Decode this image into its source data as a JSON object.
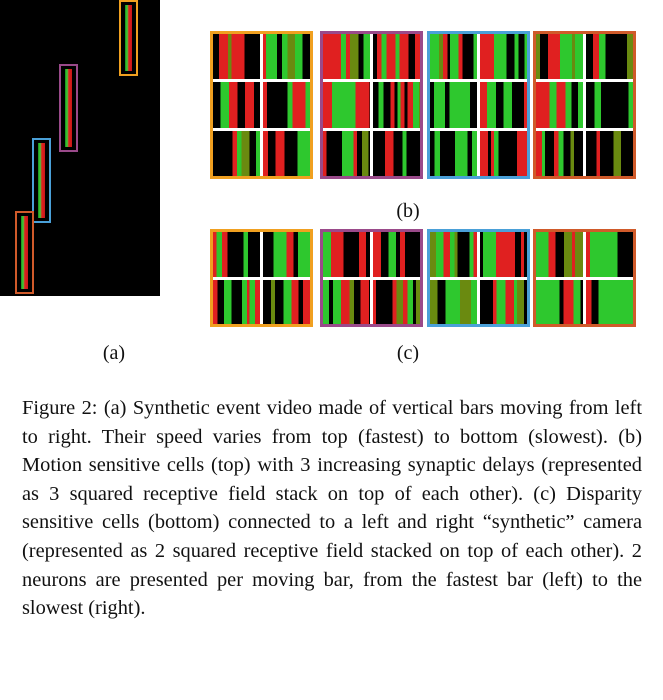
{
  "labels": {
    "a": "(a)",
    "b": "(b)",
    "c": "(c)"
  },
  "caption": "Figure 2: (a) Synthetic event video made of vertical bars moving from left to right. Their speed varies from top (fastest) to bottom (slowest). (b) Motion sensitive cells (top) with 3 increasing synaptic delays (represented as 3 squared receptive field stack on top of each other). (c) Disparity sensitive cells (bottom) connected to a left and right “synthetic” camera (represented as 2 squared receptive field stacked on top of each other). 2 neurons are presented per moving bar, from the fastest bar (left) to the slowest (right).",
  "colors": {
    "orange": "#f0a020",
    "purple": "#9a4a8a",
    "blue": "#4aa0d8",
    "red": "#d05a2a",
    "green": "#2ec82e",
    "bar_red": "#e02020",
    "background": "#000000"
  }
}
